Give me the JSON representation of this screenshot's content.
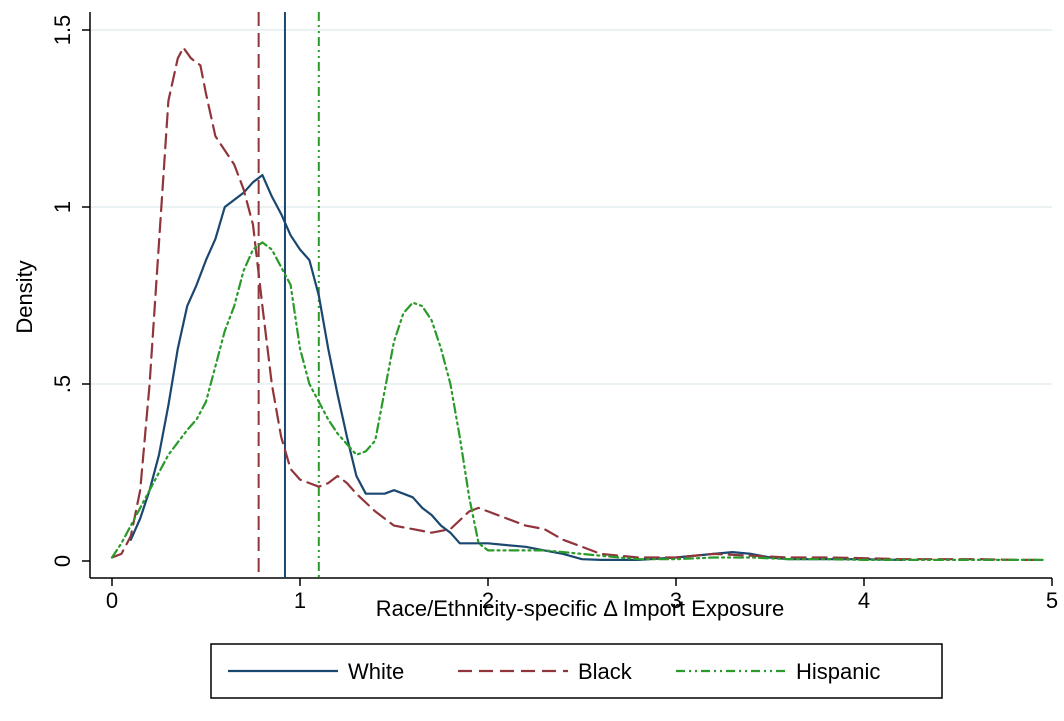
{
  "chart_data": {
    "type": "line",
    "xlabel": "Race/Ethnicity-specific Δ Import Exposure",
    "ylabel": "Density",
    "xlim": [
      0,
      5
    ],
    "ylim": [
      0,
      1.5
    ],
    "x_ticks": [
      0,
      1,
      2,
      3,
      4,
      5
    ],
    "x_tick_labels": [
      "0",
      "1",
      "2",
      "3",
      "4",
      "5"
    ],
    "y_ticks": [
      0,
      0.5,
      1,
      1.5
    ],
    "y_tick_labels": [
      "0",
      ".5",
      "1",
      "1.5"
    ],
    "grid": "horizontal",
    "legend_position": "bottom",
    "series": [
      {
        "name": "White",
        "color": "#1a476f",
        "dash": "solid",
        "mean_line": 0.92,
        "x": [
          0.1,
          0.15,
          0.2,
          0.25,
          0.3,
          0.35,
          0.4,
          0.45,
          0.5,
          0.55,
          0.6,
          0.65,
          0.7,
          0.75,
          0.8,
          0.85,
          0.9,
          0.95,
          1.0,
          1.05,
          1.1,
          1.15,
          1.2,
          1.25,
          1.3,
          1.35,
          1.4,
          1.45,
          1.5,
          1.55,
          1.6,
          1.65,
          1.7,
          1.75,
          1.8,
          1.85,
          1.9,
          1.95,
          2.0,
          2.1,
          2.2,
          2.3,
          2.4,
          2.5,
          2.6,
          2.8,
          3.0,
          3.2,
          3.3,
          3.4,
          3.5,
          3.6,
          3.8,
          4.0,
          4.2
        ],
        "y": [
          0.06,
          0.12,
          0.2,
          0.3,
          0.44,
          0.6,
          0.72,
          0.78,
          0.85,
          0.91,
          1.0,
          1.02,
          1.04,
          1.07,
          1.09,
          1.03,
          0.98,
          0.92,
          0.88,
          0.85,
          0.75,
          0.6,
          0.47,
          0.35,
          0.24,
          0.19,
          0.19,
          0.19,
          0.2,
          0.19,
          0.18,
          0.15,
          0.13,
          0.1,
          0.08,
          0.05,
          0.05,
          0.05,
          0.05,
          0.045,
          0.04,
          0.03,
          0.02,
          0.005,
          0.003,
          0.003,
          0.01,
          0.02,
          0.025,
          0.02,
          0.01,
          0.005,
          0.005,
          0.005,
          0.003
        ]
      },
      {
        "name": "Black",
        "color": "#90353b",
        "dash": "long-dash",
        "mean_line": 0.78,
        "x": [
          0.0,
          0.05,
          0.1,
          0.15,
          0.2,
          0.25,
          0.3,
          0.35,
          0.38,
          0.42,
          0.47,
          0.5,
          0.55,
          0.6,
          0.65,
          0.7,
          0.75,
          0.8,
          0.85,
          0.9,
          0.95,
          1.0,
          1.05,
          1.1,
          1.15,
          1.2,
          1.25,
          1.3,
          1.4,
          1.5,
          1.6,
          1.7,
          1.8,
          1.9,
          1.95,
          2.0,
          2.1,
          2.2,
          2.3,
          2.4,
          2.5,
          2.6,
          2.8,
          3.0,
          3.2,
          3.4,
          3.6,
          3.8,
          4.0,
          4.2,
          4.4,
          4.6,
          4.8,
          4.95
        ],
        "y": [
          0.01,
          0.02,
          0.07,
          0.2,
          0.5,
          0.9,
          1.3,
          1.42,
          1.45,
          1.42,
          1.4,
          1.32,
          1.2,
          1.16,
          1.12,
          1.05,
          0.95,
          0.72,
          0.5,
          0.35,
          0.26,
          0.23,
          0.22,
          0.21,
          0.22,
          0.24,
          0.22,
          0.19,
          0.14,
          0.1,
          0.09,
          0.08,
          0.09,
          0.14,
          0.15,
          0.14,
          0.12,
          0.1,
          0.09,
          0.06,
          0.04,
          0.02,
          0.01,
          0.01,
          0.02,
          0.015,
          0.01,
          0.01,
          0.008,
          0.005,
          0.005,
          0.005,
          0.003,
          0.003
        ]
      },
      {
        "name": "Hispanic",
        "color": "#2a9a2a",
        "dash": "dash-dot-dot",
        "mean_line": 1.1,
        "x": [
          0.0,
          0.05,
          0.1,
          0.2,
          0.3,
          0.4,
          0.45,
          0.5,
          0.55,
          0.6,
          0.65,
          0.7,
          0.75,
          0.8,
          0.85,
          0.9,
          0.95,
          1.0,
          1.05,
          1.1,
          1.15,
          1.2,
          1.3,
          1.35,
          1.4,
          1.45,
          1.5,
          1.55,
          1.6,
          1.65,
          1.7,
          1.75,
          1.8,
          1.85,
          1.9,
          1.95,
          2.0,
          2.1,
          2.2,
          2.3,
          2.4,
          2.6,
          2.8,
          3.0,
          3.2,
          3.4,
          3.6,
          3.8,
          4.0,
          4.2,
          4.4,
          4.6,
          4.8,
          4.95
        ],
        "y": [
          0.01,
          0.05,
          0.1,
          0.2,
          0.3,
          0.37,
          0.4,
          0.45,
          0.55,
          0.65,
          0.72,
          0.82,
          0.88,
          0.9,
          0.88,
          0.83,
          0.78,
          0.6,
          0.5,
          0.45,
          0.4,
          0.36,
          0.3,
          0.31,
          0.34,
          0.48,
          0.62,
          0.7,
          0.73,
          0.72,
          0.68,
          0.6,
          0.5,
          0.35,
          0.18,
          0.05,
          0.03,
          0.03,
          0.03,
          0.03,
          0.025,
          0.015,
          0.005,
          0.005,
          0.01,
          0.01,
          0.005,
          0.005,
          0.003,
          0.003,
          0.003,
          0.003,
          0.003,
          0.003
        ]
      }
    ]
  }
}
